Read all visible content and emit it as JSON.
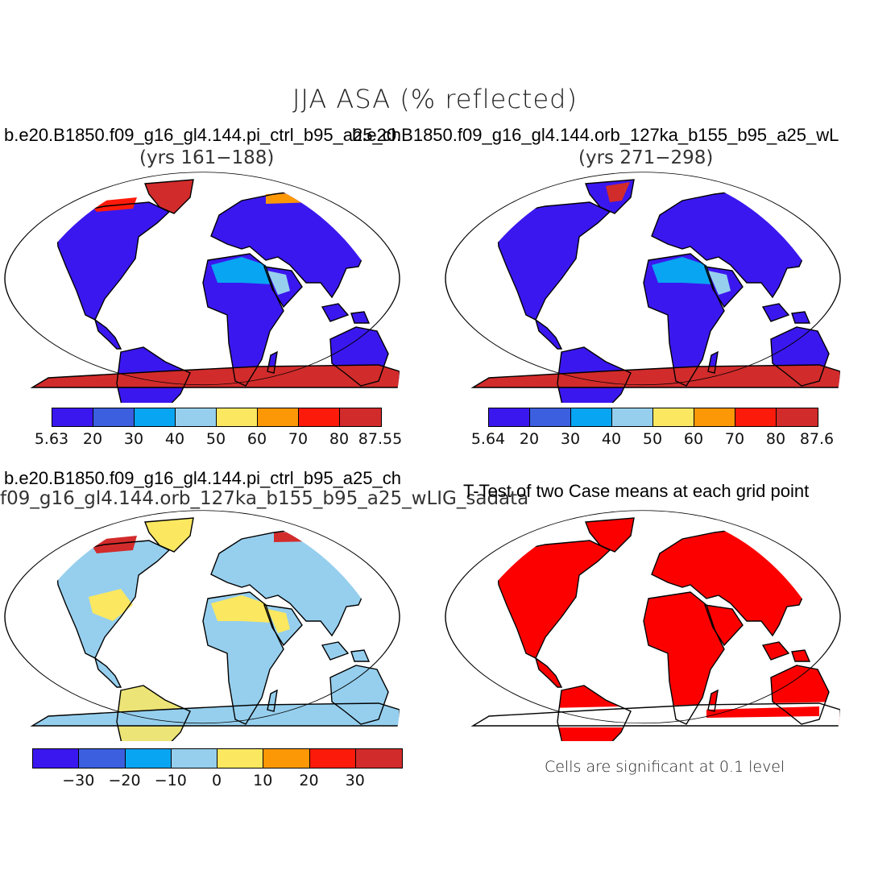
{
  "title": "JJA ASA (% reflected)",
  "colors": {
    "abs": [
      "#3b17ef",
      "#3b5fdf",
      "#08a5f2",
      "#96cfee",
      "#fbe860",
      "#fc9806",
      "#fc1b0a",
      "#d22b2b"
    ],
    "sig": "#fc0000",
    "land_outline": "#000000"
  },
  "panels": [
    {
      "id": "ctrl",
      "title": "b.e20.B1850.f09_g16_gl4.144.pi_ctrl_b95_a25_ch",
      "subtitle": "(yrs 161−188)",
      "colorbar": {
        "labels": [
          "5.63",
          "20",
          "30",
          "40",
          "50",
          "60",
          "70",
          "80",
          "87.55"
        ]
      }
    },
    {
      "id": "orb",
      "title": "b.e20.B1850.f09_g16_gl4.144.orb_127ka_b155_b95_a25_wL",
      "subtitle": "(yrs 271−298)",
      "colorbar": {
        "labels": [
          "5.64",
          "20",
          "30",
          "40",
          "50",
          "60",
          "70",
          "80",
          "87.6"
        ]
      }
    },
    {
      "id": "diff",
      "title": "b.e20.B1850.f09_g16_gl4.144.pi_ctrl_b95_a25_ch",
      "subtitle": "f09_g16_gl4.144.orb_127ka_b155_b95_a25_wLIG_sadata",
      "colorbar": {
        "labels": [
          "−30",
          "−20",
          "−10",
          "0",
          "10",
          "20",
          "30"
        ]
      }
    },
    {
      "id": "ttest",
      "title": "T-Test of two Case means at each grid point",
      "note": "Cells are significant at 0.1 level"
    }
  ]
}
